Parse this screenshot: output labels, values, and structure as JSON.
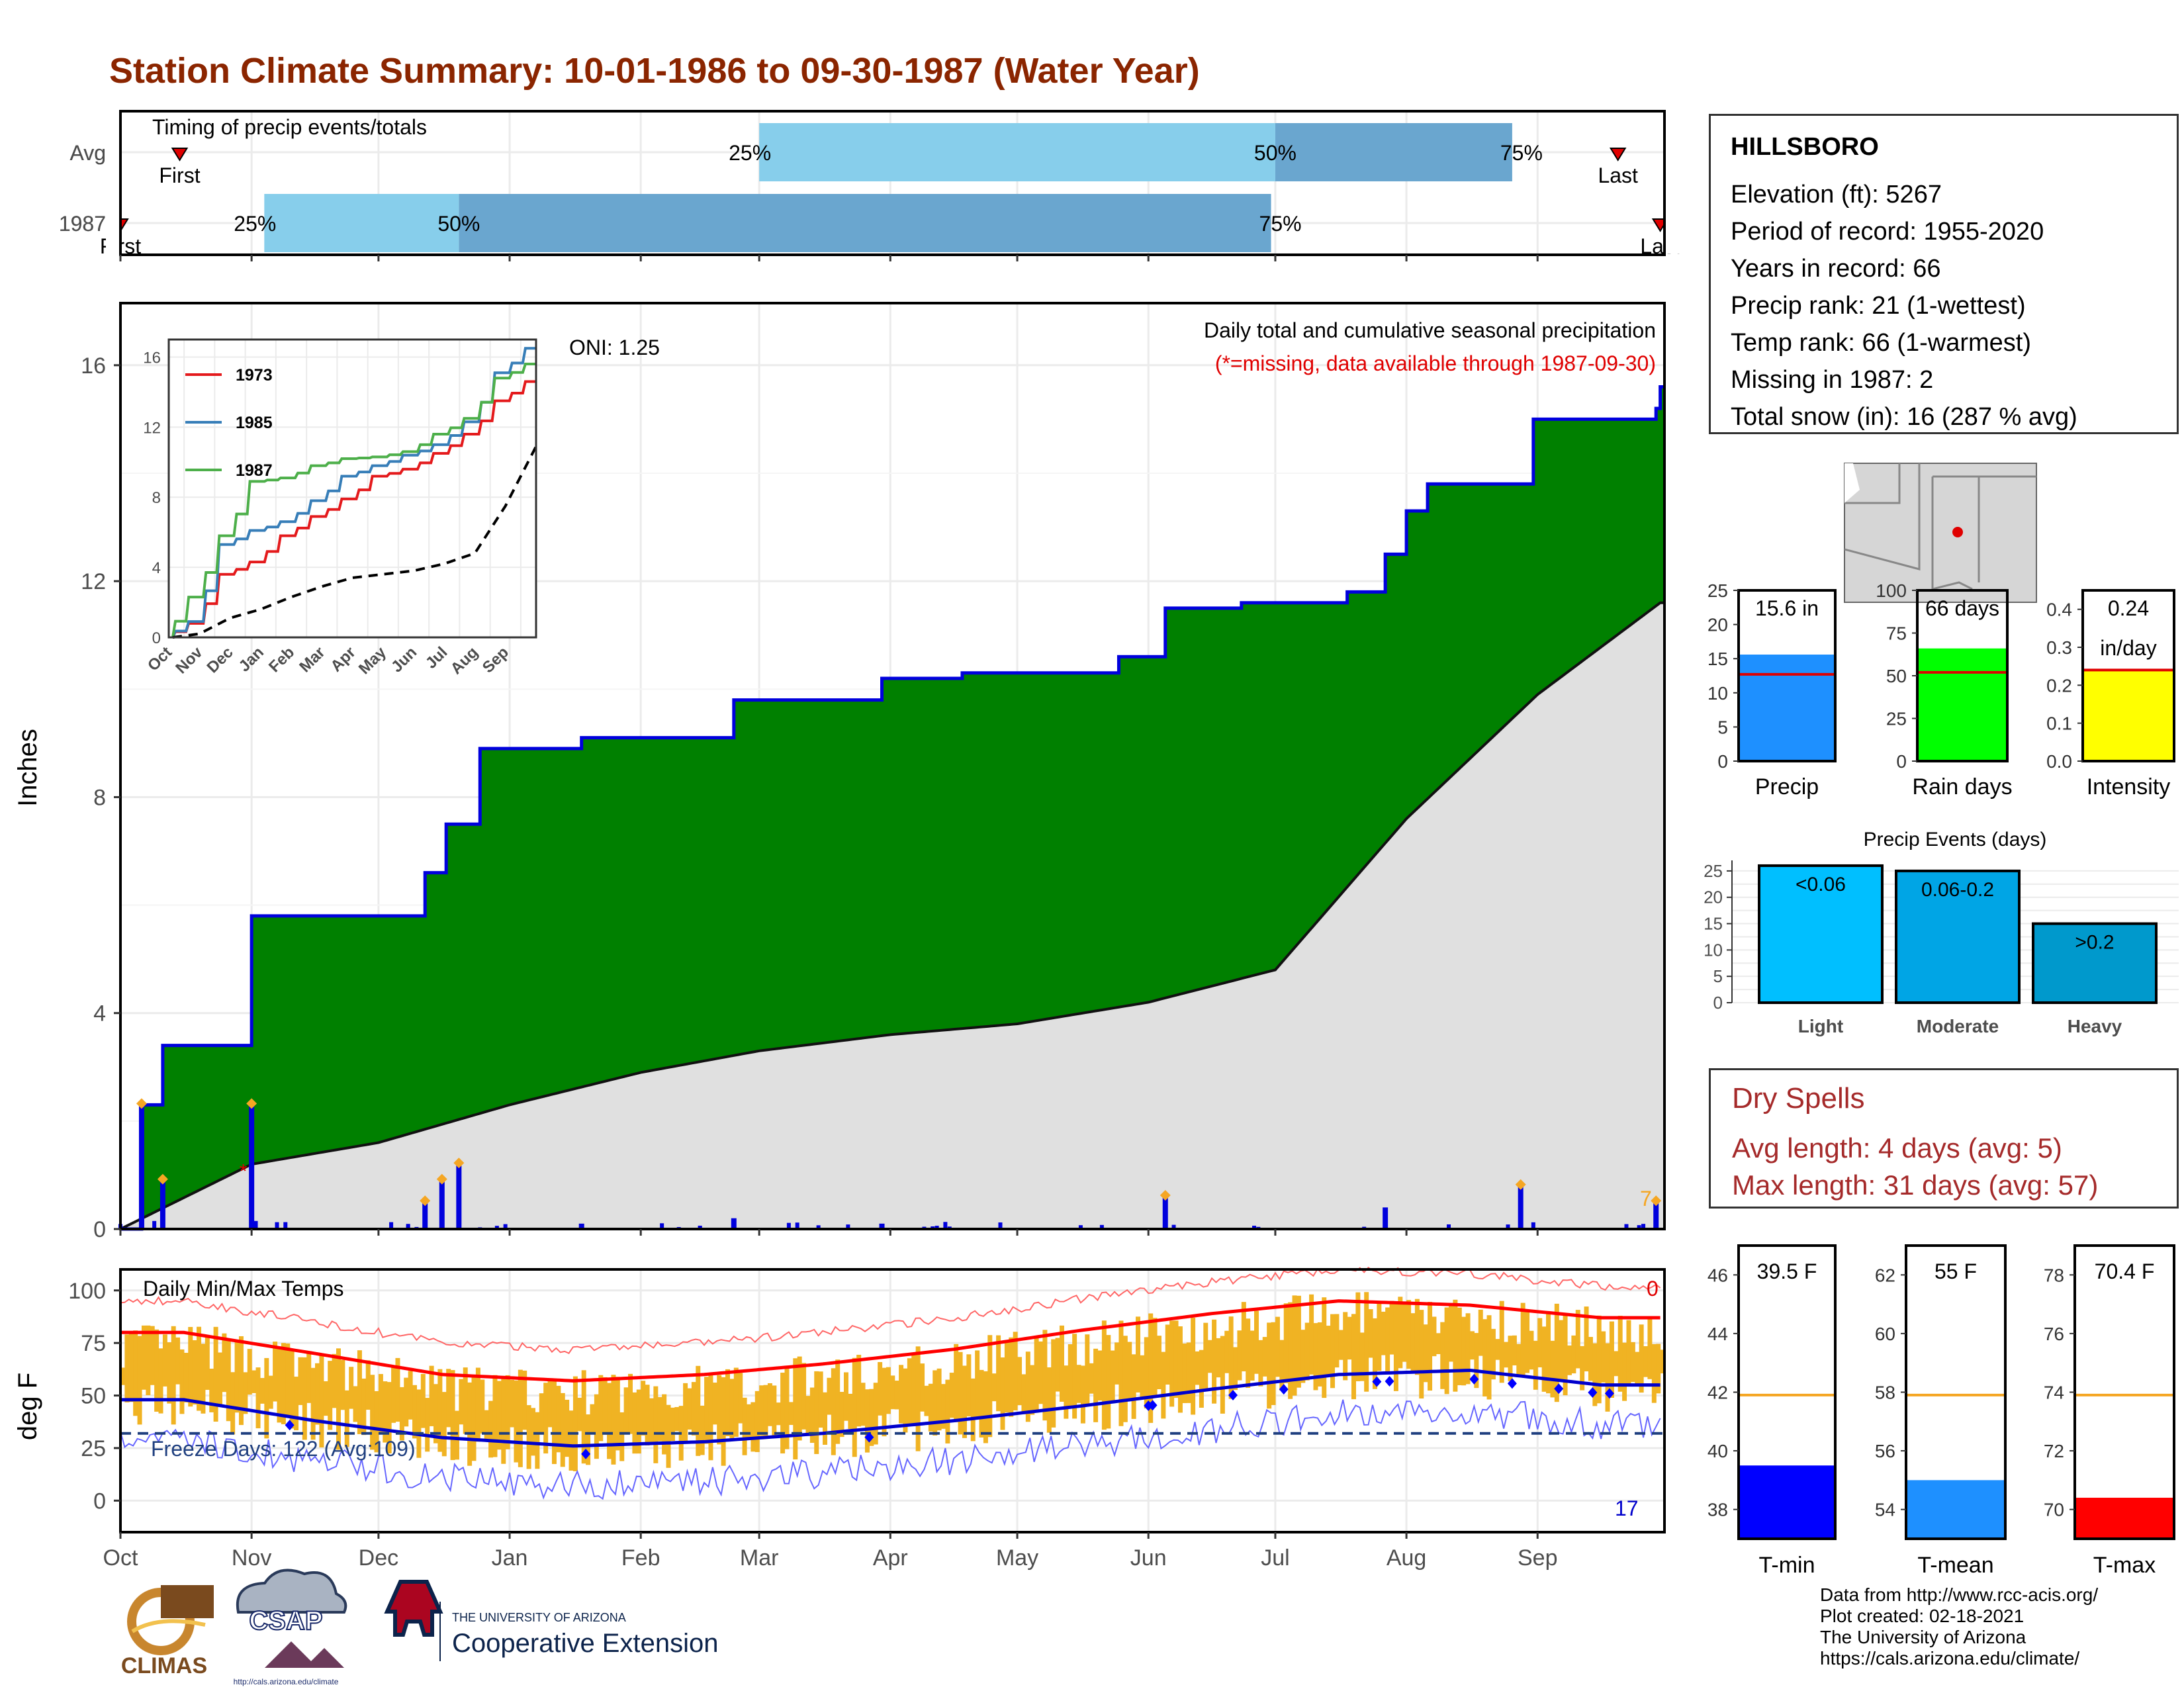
{
  "title": "Station Climate Summary: 10-01-1986 to 09-30-1987 (Water Year)",
  "colors": {
    "title": "#8b2500",
    "green": "#008000",
    "blue_line": "#0000dd",
    "gray_fill": "#e0e0e0",
    "bar_light": "#87ceeb",
    "bar_dark": "#6aa6cf",
    "precip_bar": "#1e90ff",
    "raindays_bar": "#00ff00",
    "intensity_bar": "#ffff00",
    "tmin_bar": "#0000ff",
    "tmean_bar": "#1e90ff",
    "tmax_bar": "#ff0000",
    "temp_range": "#f0b323",
    "orange_line": "#f5a623"
  },
  "timing": {
    "label": "Timing of precip events/totals",
    "rows": [
      {
        "name": "Avg",
        "first_label": "First",
        "last_label": "Last",
        "first": "Oct 15",
        "last": "Sep 20",
        "p25": "Mar 1",
        "p50": "Jul 1",
        "p75": "Aug 26",
        "p25_label": "25%",
        "p50_label": "50%",
        "p75_label": "75%"
      },
      {
        "name": "1987",
        "first_label": "First",
        "last_label": "Last",
        "first": "Oct 1",
        "last": "Sep 30",
        "p25": "Nov 4",
        "p50": "Dec 20",
        "p75": "Jun 30",
        "p25_label": "25%",
        "p50_label": "50%",
        "p75_label": "75%"
      }
    ]
  },
  "precip_panel": {
    "ylabel": "Inches",
    "ticks": [
      "0",
      "4",
      "8",
      "12",
      "16"
    ],
    "oni": "ONI: 1.25",
    "annotation_title": "Daily total and cumulative seasonal precipitation",
    "annotation_missing": "(*=missing, data available through 1987-09-30)",
    "corner_count": "7",
    "inset": {
      "ticks_y": [
        "0",
        "4",
        "8",
        "12",
        "16"
      ],
      "months": [
        "Oct",
        "Nov",
        "Dec",
        "Jan",
        "Feb",
        "Mar",
        "Apr",
        "May",
        "Jun",
        "Jul",
        "Aug",
        "Sep"
      ],
      "legend": [
        {
          "name": "1973",
          "color": "#e41a1c"
        },
        {
          "name": "1985",
          "color": "#377eb8"
        },
        {
          "name": "1987",
          "color": "#4daf4a"
        }
      ]
    }
  },
  "temp_panel": {
    "ylabel": "deg F",
    "label": "Daily Min/Max Temps",
    "ticks": [
      "0",
      "25",
      "50",
      "75",
      "100"
    ],
    "freeze_label": "Freeze Days: 122 (Avg:109)",
    "hot_count": "0",
    "cold_count": "17"
  },
  "months": [
    "Oct",
    "Nov",
    "Dec",
    "Jan",
    "Feb",
    "Mar",
    "Apr",
    "May",
    "Jun",
    "Jul",
    "Aug",
    "Sep"
  ],
  "station": {
    "name": "HILLSBORO",
    "lines": [
      "Elevation (ft): 5267",
      "Period of record: 1955-2020",
      "Years in record: 66",
      "Precip rank: 21 (1-wettest)",
      "Temp rank: 66 (1-warmest)",
      "Missing in 1987: 2",
      "Total snow (in): 16 (287 % avg)"
    ]
  },
  "summary_bars": [
    {
      "label": "Precip",
      "value_label": "15.6 in",
      "ticks": [
        "0",
        "5",
        "10",
        "15",
        "20",
        "25"
      ]
    },
    {
      "label": "Rain days",
      "value_label": "66 days",
      "ticks": [
        "0",
        "25",
        "50",
        "75",
        "100"
      ]
    },
    {
      "label": "Intensity",
      "value_label": "0.24",
      "value_label2": "in/day",
      "ticks": [
        "0.0",
        "0.1",
        "0.2",
        "0.3",
        "0.4"
      ]
    }
  ],
  "events": {
    "title": "Precip Events (days)",
    "ticks": [
      "0",
      "5",
      "10",
      "15",
      "20",
      "25"
    ],
    "bars": [
      {
        "label": "Light",
        "value_label": "<0.06"
      },
      {
        "label": "Moderate",
        "value_label": "0.06-0.2"
      },
      {
        "label": "Heavy",
        "value_label": ">0.2"
      }
    ]
  },
  "dry_spells": {
    "title": "Dry Spells",
    "lines": [
      "Avg length: 4 days (avg: 5)",
      "Max length: 31 days (avg: 57)"
    ]
  },
  "temp_bars": [
    {
      "label": "T-min",
      "value_label": "39.5 F",
      "ticks": [
        "38",
        "40",
        "42",
        "44",
        "46"
      ]
    },
    {
      "label": "T-mean",
      "value_label": "55 F",
      "ticks": [
        "54",
        "56",
        "58",
        "60",
        "62"
      ]
    },
    {
      "label": "T-max",
      "value_label": "70.4 F",
      "ticks": [
        "70",
        "72",
        "74",
        "76",
        "78"
      ]
    }
  ],
  "footer": [
    "Data from http://www.rcc-acis.org/",
    "Plot created: 02-18-2021",
    "The University of Arizona",
    "https://cals.arizona.edu/climate/"
  ],
  "logos": {
    "climas": "CLIMAS",
    "csap": "CSAP",
    "csap_url": "http://cals.arizona.edu/climate",
    "ua_line1": "THE UNIVERSITY OF ARIZONA",
    "ua_line2": "Cooperative Extension"
  },
  "chart_data": [
    {
      "type": "area",
      "title": "Daily total and cumulative seasonal precipitation",
      "ylabel": "Inches",
      "ylim": [
        0,
        17
      ],
      "x_range": [
        "1986-10-01",
        "1987-09-30"
      ],
      "grid": true,
      "series": [
        {
          "name": "",
          "x": [
            "1986-10-01",
            "1986-10-06",
            "1986-10-11",
            "1986-11-01",
            "1986-12-12",
            "1986-12-17",
            "1986-12-25",
            "1987-01-18",
            "1987-02-23",
            "1987-03-01",
            "1987-03-30",
            "1987-04-18",
            "1987-05-25",
            "1987-06-05",
            "1987-06-23",
            "1987-07-18",
            "1987-07-27",
            "1987-08-01",
            "1987-08-06",
            "1987-08-31",
            "1987-09-29",
            "1987-09-30"
          ],
          "values": [
            0,
            2.3,
            3.4,
            5.8,
            6.6,
            7.5,
            8.9,
            9.1,
            9.8,
            9.8,
            10.2,
            10.3,
            10.6,
            11.5,
            11.6,
            11.8,
            12.5,
            13.3,
            13.8,
            15.0,
            15.2,
            15.6
          ]
        },
        {
          "name": "",
          "x": [
            "1986-10-01",
            "1986-11-01",
            "1986-12-01",
            "1987-01-01",
            "1987-02-01",
            "1987-03-01",
            "1987-04-01",
            "1987-05-01",
            "1987-06-01",
            "1987-07-01",
            "1987-08-01",
            "1987-09-01",
            "1987-09-30"
          ],
          "values": [
            0,
            1.2,
            1.6,
            2.3,
            2.9,
            3.3,
            3.6,
            3.8,
            4.2,
            4.8,
            7.6,
            9.9,
            11.6
          ]
        }
      ],
      "daily_bars": {
        "x": [
          "1986-10-06",
          "1986-10-11",
          "1986-11-01",
          "1986-12-12",
          "1986-12-16",
          "1986-12-20",
          "1987-01-18",
          "1987-02-23",
          "1987-03-30",
          "1987-06-05",
          "1987-07-27",
          "1987-08-28",
          "1987-09-29"
        ],
        "values": [
          2.3,
          0.9,
          2.3,
          0.5,
          0.9,
          1.2,
          0.1,
          0.2,
          0.1,
          0.6,
          0.4,
          0.8,
          0.5
        ]
      }
    },
    {
      "type": "line",
      "title": "",
      "ylim": [
        0,
        17
      ],
      "months": [
        "Oct",
        "Nov",
        "Dec",
        "Jan",
        "Feb",
        "Mar",
        "Apr",
        "May",
        "Jun",
        "Jul",
        "Aug",
        "Sep"
      ],
      "series": [
        {
          "name": "1973",
          "values": [
            0.8,
            3.6,
            4.3,
            5.8,
            6.9,
            7.9,
            9.2,
            9.6,
            10.5,
            11.6,
            13.5,
            14.6
          ]
        },
        {
          "name": "1985",
          "values": [
            0.9,
            5.3,
            6.1,
            6.6,
            7.8,
            9.2,
            9.8,
            10.4,
            11.0,
            12.3,
            15.1,
            16.5
          ]
        },
        {
          "name": "1987",
          "values": [
            2.3,
            5.8,
            8.9,
            9.1,
            9.8,
            10.2,
            10.3,
            10.6,
            11.6,
            12.5,
            14.8,
            15.6
          ]
        },
        {
          "name": "",
          "values": [
            0.2,
            1.1,
            1.6,
            2.3,
            2.9,
            3.4,
            3.6,
            3.8,
            4.2,
            4.8,
            7.5,
            10.9
          ]
        }
      ]
    },
    {
      "type": "line",
      "title": "Daily Min/Max Temps",
      "ylabel": "deg F",
      "ylim": [
        -15,
        110
      ],
      "x": [
        "Oct",
        "Nov",
        "Dec",
        "Jan",
        "Feb",
        "Mar",
        "Apr",
        "May",
        "Jun",
        "Jul",
        "Aug",
        "Sep"
      ],
      "series": [
        {
          "name": "",
          "values": [
            80,
            70,
            60,
            57,
            60,
            65,
            72,
            81,
            89,
            95,
            93,
            87
          ]
        },
        {
          "name": "",
          "values": [
            48,
            38,
            30,
            26,
            28,
            32,
            38,
            45,
            53,
            60,
            62,
            55
          ]
        }
      ],
      "freeze_threshold": 32
    },
    {
      "type": "bar",
      "categories": [
        "Precip",
        "Rain days",
        "Intensity"
      ],
      "values": [
        15.6,
        66,
        0.24
      ],
      "averages": [
        12.7,
        52,
        0.24
      ],
      "ylims": [
        [
          0,
          25
        ],
        [
          0,
          100
        ],
        [
          0,
          0.45
        ]
      ]
    },
    {
      "type": "bar",
      "title": "Precip Events (days)",
      "categories": [
        "Light",
        "Moderate",
        "Heavy"
      ],
      "values": [
        26,
        25,
        15
      ],
      "ylim": [
        0,
        27
      ]
    },
    {
      "type": "bar",
      "categories": [
        "T-min",
        "T-mean",
        "T-max"
      ],
      "values": [
        39.5,
        55,
        70.4
      ],
      "averages": [
        41.9,
        57.9,
        73.9
      ],
      "ylims": [
        [
          37,
          47
        ],
        [
          53,
          63
        ],
        [
          69,
          79
        ]
      ]
    }
  ]
}
